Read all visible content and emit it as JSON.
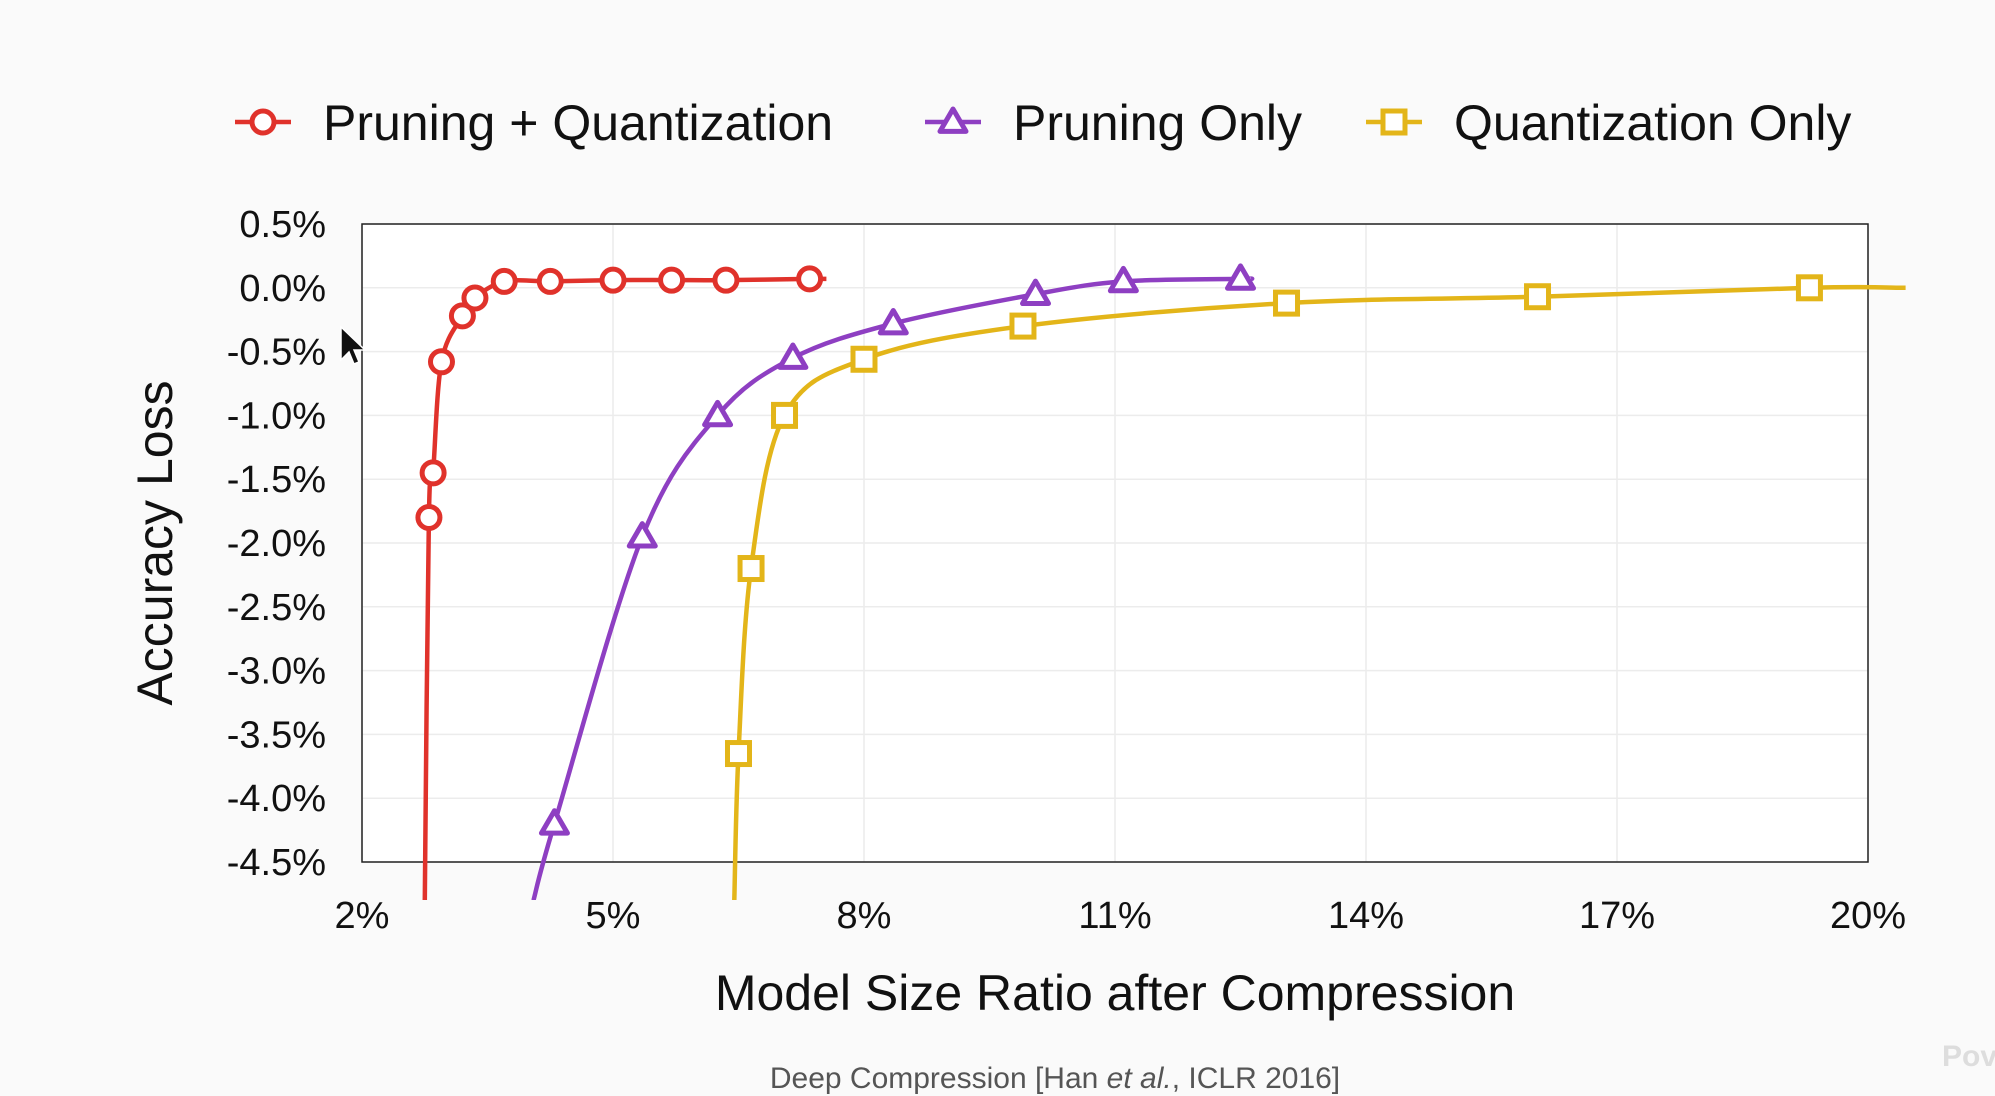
{
  "chart_data": {
    "type": "line",
    "xlabel": "Model Size Ratio after Compression",
    "ylabel": "Accuracy Loss",
    "xlim": [
      2,
      20
    ],
    "ylim": [
      -4.5,
      0.5
    ],
    "x_ticks": [
      "2%",
      "5%",
      "8%",
      "11%",
      "14%",
      "17%",
      "20%"
    ],
    "x_tick_values": [
      2,
      5,
      8,
      11,
      14,
      17,
      20
    ],
    "y_ticks": [
      "0.5%",
      "0.0%",
      "-0.5%",
      "-1.0%",
      "-1.5%",
      "-2.0%",
      "-2.5%",
      "-3.0%",
      "-3.5%",
      "-4.0%",
      "-4.5%"
    ],
    "y_tick_values": [
      0.5,
      0.0,
      -0.5,
      -1.0,
      -1.5,
      -2.0,
      -2.5,
      -3.0,
      -3.5,
      -4.0,
      -4.5
    ],
    "grid": true,
    "legend_position": "top",
    "series": [
      {
        "name": "Pruning + Quantization",
        "color": "#e0322b",
        "marker": "circle",
        "x": [
          2.8,
          2.85,
          2.95,
          3.2,
          3.35,
          3.7,
          4.25,
          5.0,
          5.7,
          6.35,
          7.35
        ],
        "y": [
          -1.8,
          -1.45,
          -0.58,
          -0.22,
          -0.08,
          0.05,
          0.05,
          0.06,
          0.06,
          0.06,
          0.07
        ],
        "tail_x": [
          2.75,
          2.8
        ],
        "tail_y": [
          -4.8,
          -1.8
        ],
        "end_x": 7.55,
        "end_y": 0.07
      },
      {
        "name": "Pruning Only",
        "color": "#8e3fc2",
        "marker": "triangle",
        "x": [
          4.3,
          5.35,
          6.25,
          7.15,
          8.35,
          10.05,
          11.1,
          12.5
        ],
        "y": [
          -4.2,
          -1.95,
          -1.0,
          -0.55,
          -0.28,
          -0.05,
          0.05,
          0.07
        ],
        "tail_x": [
          4.05,
          4.3
        ],
        "tail_y": [
          -4.8,
          -4.2
        ],
        "end_x": 12.6,
        "end_y": 0.07
      },
      {
        "name": "Quantization Only",
        "color": "#e3b519",
        "marker": "square",
        "x": [
          6.5,
          6.65,
          7.05,
          8.0,
          9.9,
          13.05,
          16.05,
          19.3
        ],
        "y": [
          -3.65,
          -2.2,
          -1.0,
          -0.56,
          -0.3,
          -0.12,
          -0.07,
          0.0
        ],
        "tail_x": [
          6.45,
          6.5
        ],
        "tail_y": [
          -4.8,
          -3.65
        ],
        "end_x": 20.45,
        "end_y": 0.0
      }
    ]
  },
  "caption": {
    "prefix": "Deep Compression [Han ",
    "italic": "et al.",
    "suffix": ", ICLR 2016]"
  },
  "watermark": "Pov"
}
